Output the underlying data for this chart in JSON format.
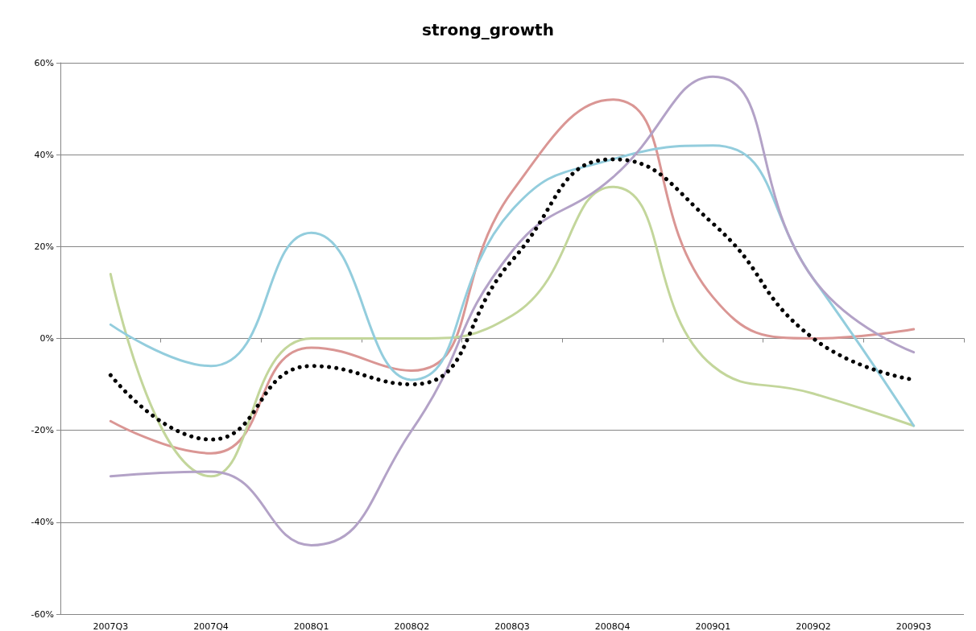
{
  "chart_data": {
    "type": "line",
    "title": "strong_growth",
    "categories": [
      "2007Q3",
      "2007Q4",
      "2008Q1",
      "2008Q2",
      "2008Q3",
      "2008Q4",
      "2009Q1",
      "2009Q2",
      "2009Q3"
    ],
    "series": [
      {
        "color": "#da9694",
        "values": [
          -18,
          -25,
          -2,
          -7,
          32,
          52,
          9,
          0,
          2
        ]
      },
      {
        "color": "#c3d69b",
        "values": [
          14,
          -30,
          0,
          0,
          5,
          33,
          -6,
          -12,
          -19
        ]
      },
      {
        "color": "#93cddd",
        "values": [
          3,
          -6,
          23,
          -9,
          28,
          39,
          42,
          13,
          -19
        ]
      },
      {
        "color": "#b3a2c7",
        "values": [
          -30,
          -29,
          -45,
          -20,
          19,
          35,
          57,
          13,
          -3
        ]
      },
      {
        "color": "#000000",
        "line_style": "dotted",
        "values": [
          -8,
          -22,
          -6,
          -10,
          17,
          39,
          25,
          0,
          -9
        ]
      }
    ],
    "ylim": [
      -60,
      60
    ],
    "yticks": [
      {
        "value": -60,
        "label": "-60%"
      },
      {
        "value": -40,
        "label": "-40%"
      },
      {
        "value": -20,
        "label": "-20%"
      },
      {
        "value": 0,
        "label": "0%"
      },
      {
        "value": 20,
        "label": "20%"
      },
      {
        "value": 40,
        "label": "40%"
      },
      {
        "value": 60,
        "label": "60%"
      }
    ],
    "grid": "y",
    "marker": "none",
    "line_style": "solid"
  }
}
